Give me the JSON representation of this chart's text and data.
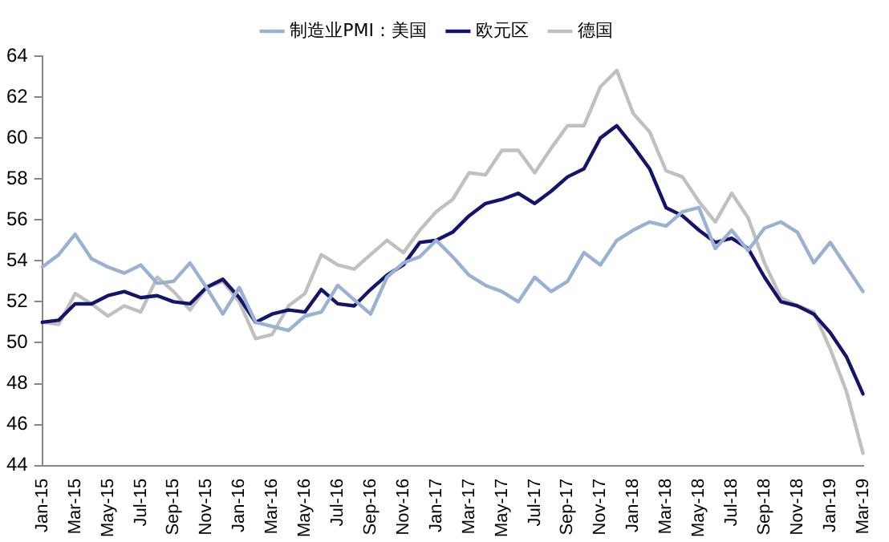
{
  "chart_data": {
    "type": "line",
    "categories": [
      "Jan-15",
      null,
      "Mar-15",
      null,
      "May-15",
      null,
      "Jul-15",
      null,
      "Sep-15",
      null,
      "Nov-15",
      null,
      "Jan-16",
      null,
      "Mar-16",
      null,
      "May-16",
      null,
      "Jul-16",
      null,
      "Sep-16",
      null,
      "Nov-16",
      null,
      "Jan-17",
      null,
      "Mar-17",
      null,
      "May-17",
      null,
      "Jul-17",
      null,
      "Sep-17",
      null,
      "Nov-17",
      null,
      "Jan-18",
      null,
      "Mar-18",
      null,
      "May-18",
      null,
      "Jul-18",
      null,
      "Sep-18",
      null,
      "Nov-18",
      null,
      "Jan-19",
      null,
      "Mar-19"
    ],
    "series": [
      {
        "name": "制造业PMI：美国",
        "color": "#9bb1d3",
        "values": [
          53.7,
          54.3,
          55.3,
          54.1,
          53.7,
          53.4,
          53.8,
          52.9,
          53.0,
          53.9,
          52.7,
          51.4,
          52.7,
          51.0,
          50.8,
          50.6,
          51.3,
          51.5,
          52.8,
          52.1,
          51.4,
          53.2,
          53.9,
          54.2,
          55.0,
          54.2,
          53.3,
          52.8,
          52.5,
          52.0,
          53.2,
          52.5,
          53.0,
          54.4,
          53.8,
          55.0,
          55.5,
          55.9,
          55.7,
          56.4,
          56.6,
          54.6,
          55.5,
          54.5,
          55.6,
          55.9,
          55.4,
          53.9,
          54.9,
          53.7,
          52.5
        ]
      },
      {
        "name": "欧元区",
        "color": "#14146b",
        "values": [
          51.0,
          51.1,
          51.9,
          51.9,
          52.3,
          52.5,
          52.2,
          52.3,
          52.0,
          51.9,
          52.7,
          53.1,
          52.2,
          51.0,
          51.4,
          51.6,
          51.5,
          52.6,
          51.9,
          51.8,
          52.6,
          53.3,
          53.8,
          54.9,
          55.0,
          55.4,
          56.2,
          56.8,
          57.0,
          57.3,
          56.8,
          57.4,
          58.1,
          58.5,
          60.0,
          60.6,
          59.6,
          58.5,
          56.6,
          56.2,
          55.5,
          54.9,
          55.1,
          54.6,
          53.2,
          52.0,
          51.8,
          51.4,
          50.5,
          49.3,
          47.5
        ]
      },
      {
        "name": "德国",
        "color": "#c0c0c0",
        "values": [
          51.0,
          50.9,
          52.4,
          51.9,
          51.3,
          51.8,
          51.5,
          53.2,
          52.5,
          51.6,
          52.7,
          53.0,
          52.0,
          50.2,
          50.4,
          51.8,
          52.4,
          54.3,
          53.8,
          53.6,
          54.3,
          55.0,
          54.4,
          55.5,
          56.4,
          57.0,
          58.3,
          58.2,
          59.4,
          59.4,
          58.3,
          59.5,
          60.6,
          60.6,
          62.5,
          63.3,
          61.2,
          60.3,
          58.4,
          58.1,
          56.9,
          55.9,
          57.3,
          56.1,
          53.9,
          52.2,
          51.8,
          51.5,
          49.7,
          47.6,
          44.6
        ]
      }
    ],
    "ylim": [
      44,
      64
    ],
    "yticks": [
      44,
      46,
      48,
      50,
      52,
      54,
      56,
      58,
      60,
      62,
      64
    ],
    "grid": false,
    "legend": "top",
    "marker": "none",
    "line_style": "solid"
  }
}
